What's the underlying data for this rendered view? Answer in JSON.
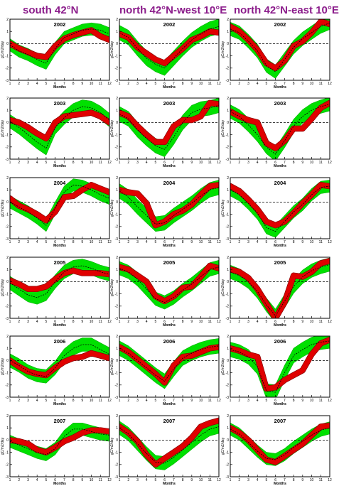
{
  "columns": [
    "south 42°N",
    "north 42°N-west 10°E",
    "north 42°N-east 10°E"
  ],
  "colors": {
    "title": "#8b1c8b",
    "band": "#00e000",
    "band_edge": "#00b000",
    "red": "#e00000",
    "red_edge": "#8a0000",
    "mean": "#000000"
  },
  "chart_data": {
    "type": "line",
    "layout": "6 rows x 3 columns of small multiples",
    "xlabel": "Months",
    "ylabel": "gC/m2/day",
    "x": [
      1,
      2,
      3,
      4,
      5,
      6,
      7,
      8,
      9,
      10,
      11,
      12
    ],
    "xlim": [
      1,
      12
    ],
    "ylim": [
      -3,
      2
    ],
    "yticks": [
      -3,
      -2,
      -1,
      0,
      1,
      2
    ],
    "reference_line": 0,
    "panels": [
      {
        "col": 0,
        "year": "2002",
        "green_mid": [
          -0.1,
          -0.6,
          -0.9,
          -1.3,
          -1.6,
          -0.4,
          0.5,
          0.8,
          1.1,
          1.2,
          1.1,
          0.8
        ],
        "green_halfwidth": 0.5,
        "red": [
          0.0,
          -0.4,
          -0.7,
          -1.0,
          -1.1,
          -0.2,
          0.4,
          0.7,
          0.9,
          1.1,
          0.6,
          0.3
        ],
        "mean": [
          -0.1,
          -0.6,
          -0.9,
          -1.3,
          -1.6,
          -0.4,
          0.5,
          0.8,
          1.1,
          1.2,
          1.1,
          0.8
        ]
      },
      {
        "col": 1,
        "year": "2002",
        "green_mid": [
          0.9,
          0.5,
          -0.4,
          -1.2,
          -1.7,
          -2.0,
          -1.2,
          -0.4,
          0.3,
          0.8,
          1.2,
          1.4
        ],
        "green_halfwidth": 0.6,
        "red": [
          0.8,
          0.5,
          -0.3,
          -0.8,
          -1.3,
          -1.6,
          -1.0,
          -0.4,
          0.3,
          0.6,
          1.0,
          0.9
        ],
        "mean": [
          0.9,
          0.5,
          -0.4,
          -1.2,
          -1.7,
          -2.0,
          -1.2,
          -0.4,
          0.3,
          0.8,
          1.2,
          1.4
        ]
      },
      {
        "col": 2,
        "year": "2002",
        "green_mid": [
          1.2,
          0.9,
          0.2,
          -0.6,
          -1.8,
          -2.3,
          -1.3,
          -0.3,
          0.4,
          0.9,
          1.4,
          1.7
        ],
        "green_halfwidth": 0.55,
        "red": [
          1.4,
          1.0,
          0.3,
          -0.5,
          -1.6,
          -2.0,
          -1.4,
          -0.2,
          0.2,
          0.9,
          1.8,
          1.6
        ],
        "mean": [
          1.2,
          0.9,
          0.2,
          -0.6,
          -1.8,
          -2.3,
          -1.3,
          -0.3,
          0.4,
          0.9,
          1.4,
          1.7
        ]
      },
      {
        "col": 0,
        "year": "2003",
        "green_mid": [
          0.1,
          -0.4,
          -1.0,
          -1.6,
          -2.1,
          -0.4,
          0.4,
          1.0,
          1.3,
          1.2,
          0.8,
          0.2
        ],
        "green_halfwidth": 0.55,
        "red": [
          0.2,
          0.0,
          -0.4,
          -0.9,
          -1.3,
          0.0,
          0.5,
          0.6,
          0.7,
          0.8,
          0.5,
          0.0
        ],
        "mean": [
          0.1,
          -0.4,
          -1.0,
          -1.6,
          -2.1,
          -0.4,
          0.4,
          1.0,
          1.3,
          1.2,
          0.8,
          0.2
        ]
      },
      {
        "col": 1,
        "year": "2003",
        "green_mid": [
          0.7,
          0.3,
          -0.6,
          -1.3,
          -1.9,
          -2.2,
          -1.2,
          0.0,
          0.8,
          1.1,
          1.2,
          1.4
        ],
        "green_halfwidth": 0.6,
        "red": [
          0.8,
          0.5,
          -0.3,
          -1.0,
          -1.6,
          -1.6,
          -0.3,
          0.2,
          0.2,
          0.5,
          1.6,
          1.5
        ],
        "mean": [
          0.7,
          0.3,
          -0.6,
          -1.3,
          -1.9,
          -2.2,
          -1.2,
          0.0,
          0.8,
          1.1,
          1.2,
          1.4
        ]
      },
      {
        "col": 2,
        "year": "2003",
        "green_mid": [
          0.9,
          0.5,
          -0.2,
          -1.0,
          -2.0,
          -2.6,
          -1.5,
          -0.3,
          0.5,
          1.0,
          1.3,
          1.5
        ],
        "green_halfwidth": 0.55,
        "red": [
          0.9,
          0.5,
          0.2,
          0.0,
          -1.7,
          -2.1,
          -1.5,
          -0.5,
          -0.5,
          0.3,
          1.2,
          1.6
        ],
        "mean": [
          0.9,
          0.5,
          -0.2,
          -1.0,
          -2.0,
          -2.6,
          -1.5,
          -0.3,
          0.5,
          1.0,
          1.3,
          1.5
        ]
      },
      {
        "col": 0,
        "year": "2004",
        "green_mid": [
          0.0,
          -0.4,
          -0.8,
          -1.3,
          -1.9,
          -0.5,
          0.8,
          1.4,
          1.3,
          1.0,
          0.6,
          0.3
        ],
        "green_halfwidth": 0.5,
        "red": [
          0.3,
          -0.3,
          -0.6,
          -1.0,
          -1.5,
          -0.8,
          0.4,
          0.5,
          1.0,
          1.4,
          1.1,
          0.8
        ],
        "mean": [
          0.0,
          -0.4,
          -0.8,
          -1.3,
          -1.9,
          -0.5,
          0.8,
          1.4,
          1.3,
          1.0,
          0.6,
          0.3
        ]
      },
      {
        "col": 1,
        "year": "2004",
        "green_mid": [
          0.9,
          0.4,
          -0.4,
          -1.1,
          -1.8,
          -1.7,
          -1.1,
          -0.6,
          -0.1,
          0.5,
          1.0,
          1.2
        ],
        "green_halfwidth": 0.6,
        "red": [
          1.0,
          0.8,
          0.7,
          -0.1,
          -1.9,
          -1.6,
          -1.0,
          -0.7,
          -0.2,
          0.6,
          1.3,
          1.4
        ],
        "mean": [
          0.9,
          0.4,
          -0.4,
          -1.1,
          -1.8,
          -1.7,
          -1.1,
          -0.6,
          -0.1,
          0.5,
          1.0,
          1.2
        ]
      },
      {
        "col": 2,
        "year": "2004",
        "green_mid": [
          1.0,
          0.6,
          -0.1,
          -0.9,
          -2.1,
          -2.4,
          -1.6,
          -0.8,
          -0.2,
          0.6,
          1.2,
          1.3
        ],
        "green_halfwidth": 0.5,
        "red": [
          1.3,
          0.9,
          0.2,
          -0.6,
          -1.6,
          -1.9,
          -1.6,
          -0.9,
          -0.1,
          0.6,
          1.4,
          1.3
        ],
        "mean": [
          1.0,
          0.6,
          -0.1,
          -0.9,
          -2.1,
          -2.4,
          -1.6,
          -0.8,
          -0.2,
          0.6,
          1.2,
          1.3
        ]
      },
      {
        "col": 0,
        "year": "2005",
        "green_mid": [
          -0.1,
          -0.6,
          -1.1,
          -1.3,
          -1.0,
          0.0,
          0.8,
          1.2,
          1.3,
          1.1,
          0.8,
          0.6
        ],
        "green_halfwidth": 0.55,
        "red": [
          0.1,
          -0.2,
          -0.6,
          -0.6,
          -0.4,
          0.2,
          0.7,
          0.9,
          0.7,
          0.7,
          0.7,
          0.6
        ],
        "mean": [
          -0.1,
          -0.6,
          -1.1,
          -1.3,
          -1.0,
          0.0,
          0.8,
          1.2,
          1.3,
          1.1,
          0.8,
          0.6
        ]
      },
      {
        "col": 1,
        "year": "2005",
        "green_mid": [
          1.1,
          0.8,
          0.2,
          -0.6,
          -1.4,
          -1.7,
          -1.3,
          -0.7,
          -0.2,
          0.4,
          1.0,
          1.2
        ],
        "green_halfwidth": 0.55,
        "red": [
          1.2,
          1.0,
          0.5,
          0.0,
          -1.2,
          -1.6,
          -1.2,
          -0.5,
          -0.4,
          0.4,
          1.3,
          1.1
        ],
        "mean": [
          1.1,
          0.8,
          0.2,
          -0.6,
          -1.4,
          -1.7,
          -1.3,
          -0.7,
          -0.2,
          0.4,
          1.0,
          1.2
        ]
      },
      {
        "col": 2,
        "year": "2005",
        "green_mid": [
          0.8,
          0.5,
          0.0,
          -0.8,
          -1.9,
          -2.8,
          -1.6,
          -0.4,
          0.4,
          0.9,
          1.2,
          1.4
        ],
        "green_halfwidth": 0.55,
        "red": [
          1.0,
          0.8,
          0.3,
          -0.6,
          -1.8,
          -3.0,
          -1.7,
          0.5,
          0.4,
          0.8,
          1.5,
          1.7
        ],
        "mean": [
          0.8,
          0.5,
          0.0,
          -0.8,
          -1.9,
          -2.8,
          -1.6,
          -0.4,
          0.4,
          0.9,
          1.2,
          1.4
        ]
      },
      {
        "col": 0,
        "year": "2006",
        "green_mid": [
          0.0,
          -0.4,
          -0.9,
          -1.2,
          -1.3,
          -0.6,
          0.4,
          1.0,
          1.3,
          1.3,
          0.9,
          0.5
        ],
        "green_halfwidth": 0.55,
        "red": [
          0.0,
          -0.5,
          -0.9,
          -1.1,
          -1.2,
          -0.6,
          -0.1,
          0.2,
          0.3,
          0.6,
          0.4,
          0.2
        ],
        "mean": [
          0.0,
          -0.4,
          -0.9,
          -1.2,
          -1.3,
          -0.6,
          0.4,
          1.0,
          1.3,
          1.3,
          0.9,
          0.5
        ]
      },
      {
        "col": 1,
        "year": "2006",
        "green_mid": [
          1.0,
          0.6,
          0.0,
          -0.6,
          -1.2,
          -1.7,
          -0.7,
          0.2,
          0.6,
          0.9,
          1.1,
          1.2
        ],
        "green_halfwidth": 0.6,
        "red": [
          1.1,
          0.7,
          0.1,
          -0.5,
          -1.1,
          -1.8,
          -0.4,
          0.3,
          0.4,
          0.7,
          1.0,
          1.1
        ],
        "mean": [
          1.0,
          0.6,
          0.0,
          -0.6,
          -1.2,
          -1.7,
          -0.7,
          0.2,
          0.6,
          0.9,
          1.1,
          1.2
        ]
      },
      {
        "col": 2,
        "year": "2006",
        "green_mid": [
          0.9,
          0.7,
          0.3,
          -0.5,
          -2.5,
          -2.6,
          -1.0,
          0.4,
          0.9,
          1.3,
          1.5,
          1.6
        ],
        "green_halfwidth": 0.6,
        "red": [
          1.0,
          0.8,
          0.5,
          0.3,
          -2.3,
          -2.2,
          -1.6,
          -1.2,
          -0.8,
          0.5,
          1.4,
          1.7
        ],
        "mean": [
          0.9,
          0.7,
          0.3,
          -0.5,
          -2.5,
          -2.6,
          -1.0,
          0.4,
          0.9,
          1.3,
          1.5,
          1.6
        ]
      },
      {
        "col": 0,
        "year": "2007",
        "green_mid": [
          -0.1,
          -0.4,
          -0.7,
          -1.0,
          -1.2,
          -0.7,
          0.3,
          0.9,
          0.9,
          0.7,
          0.5,
          0.4
        ],
        "green_halfwidth": 0.5,
        "red": [
          0.0,
          -0.1,
          -0.3,
          -0.8,
          -1.0,
          -0.6,
          -0.1,
          0.2,
          0.6,
          0.8,
          0.8,
          0.7
        ],
        "mean": [
          -0.1,
          -0.4,
          -0.7,
          -1.0,
          -1.2,
          -0.7,
          0.3,
          0.9,
          0.9,
          0.7,
          0.5,
          0.4
        ]
      },
      {
        "col": 1,
        "year": "2007",
        "green_mid": [
          1.0,
          0.5,
          -0.3,
          -1.1,
          -1.8,
          -1.9,
          -1.4,
          -0.8,
          -0.2,
          0.4,
          0.9,
          1.1
        ],
        "green_halfwidth": 0.55,
        "red": [
          1.1,
          0.6,
          -0.1,
          -1.2,
          -2.0,
          -1.5,
          -1.0,
          -0.5,
          0.2,
          1.1,
          1.4,
          1.6
        ],
        "mean": [
          1.0,
          0.5,
          -0.3,
          -1.1,
          -1.8,
          -1.9,
          -1.4,
          -0.8,
          -0.2,
          0.4,
          0.9,
          1.1
        ]
      },
      {
        "col": 2,
        "year": "2007",
        "green_mid": [
          0.9,
          0.5,
          -0.2,
          -0.9,
          -1.5,
          -1.6,
          -1.2,
          -0.6,
          -0.1,
          0.4,
          0.8,
          1.0
        ],
        "green_halfwidth": 0.5,
        "red": [
          1.0,
          0.6,
          0.0,
          -0.8,
          -1.6,
          -1.8,
          -1.3,
          -0.8,
          -0.3,
          0.4,
          1.1,
          1.2
        ],
        "mean": [
          0.9,
          0.5,
          -0.2,
          -0.9,
          -1.5,
          -1.6,
          -1.2,
          -0.6,
          -0.1,
          0.4,
          0.8,
          1.0
        ]
      }
    ]
  }
}
